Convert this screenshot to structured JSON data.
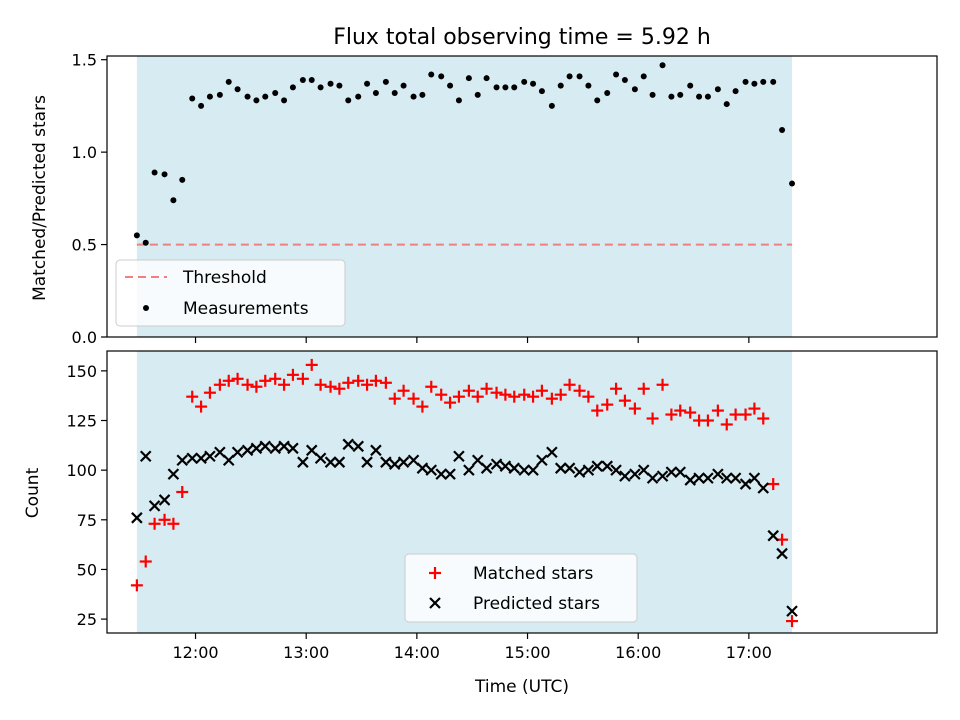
{
  "chart_data": [
    {
      "type": "scatter",
      "title": "Flux total observing time = 5.92 h",
      "xlabel": "",
      "ylabel": "Matched/Predicted stars",
      "xlim": [
        11.2,
        18.7
      ],
      "ylim": [
        0,
        1.52
      ],
      "yticks": [
        0,
        0.5,
        1.0,
        1.5
      ],
      "yticklabels": [
        "0.0",
        "0.5",
        "1.0",
        "1.5"
      ],
      "shaded_span": [
        11.47,
        17.39
      ],
      "shade_color": "#add8e6",
      "threshold": {
        "name": "Threshold",
        "value": 0.5,
        "color": "#f08080",
        "style": "dashed"
      },
      "legend": {
        "position": "lower-left",
        "entries": [
          "Threshold",
          "Measurements"
        ]
      },
      "series": [
        {
          "name": "Measurements",
          "marker": "dot",
          "color": "#000000",
          "x": [
            11.47,
            11.55,
            11.63,
            11.72,
            11.8,
            11.88,
            11.97,
            12.05,
            12.13,
            12.22,
            12.3,
            12.38,
            12.47,
            12.55,
            12.63,
            12.72,
            12.8,
            12.88,
            12.97,
            13.05,
            13.13,
            13.22,
            13.3,
            13.38,
            13.47,
            13.55,
            13.63,
            13.72,
            13.8,
            13.88,
            13.97,
            14.05,
            14.13,
            14.22,
            14.3,
            14.38,
            14.47,
            14.55,
            14.63,
            14.72,
            14.8,
            14.88,
            14.97,
            15.05,
            15.13,
            15.22,
            15.3,
            15.38,
            15.47,
            15.55,
            15.63,
            15.72,
            15.8,
            15.88,
            15.97,
            16.05,
            16.13,
            16.22,
            16.3,
            16.38,
            16.47,
            16.55,
            16.63,
            16.72,
            16.8,
            16.88,
            16.97,
            17.05,
            17.13,
            17.22,
            17.3,
            17.39
          ],
          "y": [
            0.55,
            0.51,
            0.89,
            0.88,
            0.74,
            0.85,
            1.29,
            1.25,
            1.3,
            1.31,
            1.38,
            1.34,
            1.3,
            1.28,
            1.3,
            1.32,
            1.28,
            1.35,
            1.39,
            1.39,
            1.35,
            1.37,
            1.36,
            1.28,
            1.3,
            1.37,
            1.32,
            1.38,
            1.32,
            1.36,
            1.3,
            1.31,
            1.42,
            1.41,
            1.36,
            1.28,
            1.4,
            1.31,
            1.4,
            1.35,
            1.35,
            1.35,
            1.38,
            1.37,
            1.33,
            1.25,
            1.36,
            1.41,
            1.41,
            1.36,
            1.28,
            1.32,
            1.42,
            1.39,
            1.34,
            1.41,
            1.31,
            1.47,
            1.3,
            1.31,
            1.36,
            1.3,
            1.3,
            1.34,
            1.26,
            1.33,
            1.38,
            1.37,
            1.38,
            1.38,
            1.12,
            0.83
          ]
        }
      ]
    },
    {
      "type": "scatter",
      "title": "",
      "xlabel": "Time (UTC)",
      "ylabel": "Count",
      "xlim": [
        11.2,
        18.7
      ],
      "ylim": [
        18,
        160
      ],
      "yticks": [
        25,
        50,
        75,
        100,
        125,
        150
      ],
      "yticklabels": [
        "25",
        "50",
        "75",
        "100",
        "125",
        "150"
      ],
      "xticks": [
        12,
        13,
        14,
        15,
        16,
        17
      ],
      "xticklabels": [
        "12:00",
        "13:00",
        "14:00",
        "15:00",
        "16:00",
        "17:00"
      ],
      "shaded_span": [
        11.47,
        17.39
      ],
      "shade_color": "#add8e6",
      "legend": {
        "position": "lower-center",
        "entries": [
          "Matched stars",
          "Predicted stars"
        ]
      },
      "series": [
        {
          "name": "Matched stars",
          "marker": "plus",
          "color": "#ff0000",
          "x": [
            11.47,
            11.55,
            11.63,
            11.72,
            11.8,
            11.88,
            11.97,
            12.05,
            12.13,
            12.22,
            12.3,
            12.38,
            12.47,
            12.55,
            12.63,
            12.72,
            12.8,
            12.88,
            12.97,
            13.05,
            13.13,
            13.22,
            13.3,
            13.38,
            13.47,
            13.55,
            13.63,
            13.72,
            13.8,
            13.88,
            13.97,
            14.05,
            14.13,
            14.22,
            14.3,
            14.38,
            14.47,
            14.55,
            14.63,
            14.72,
            14.8,
            14.88,
            14.97,
            15.05,
            15.13,
            15.22,
            15.3,
            15.38,
            15.47,
            15.55,
            15.63,
            15.72,
            15.8,
            15.88,
            15.97,
            16.05,
            16.13,
            16.22,
            16.3,
            16.38,
            16.47,
            16.55,
            16.63,
            16.72,
            16.8,
            16.88,
            16.97,
            17.05,
            17.13,
            17.22,
            17.3,
            17.39
          ],
          "y": [
            42,
            54,
            73,
            75,
            73,
            89,
            137,
            132,
            139,
            143,
            145,
            146,
            143,
            142,
            145,
            146,
            143,
            148,
            146,
            153,
            143,
            142,
            141,
            144,
            145,
            143,
            145,
            144,
            136,
            140,
            136,
            132,
            142,
            138,
            134,
            137,
            140,
            137,
            141,
            139,
            138,
            137,
            138,
            137,
            140,
            136,
            138,
            143,
            140,
            137,
            130,
            133,
            141,
            135,
            131,
            141,
            126,
            143,
            128,
            130,
            129,
            125,
            125,
            130,
            123,
            128,
            128,
            131,
            126,
            93,
            65,
            24
          ]
        },
        {
          "name": "Predicted stars",
          "marker": "x",
          "color": "#000000",
          "x": [
            11.47,
            11.55,
            11.63,
            11.72,
            11.8,
            11.88,
            11.97,
            12.05,
            12.13,
            12.22,
            12.3,
            12.38,
            12.47,
            12.55,
            12.63,
            12.72,
            12.8,
            12.88,
            12.97,
            13.05,
            13.13,
            13.22,
            13.3,
            13.38,
            13.47,
            13.55,
            13.63,
            13.72,
            13.8,
            13.88,
            13.97,
            14.05,
            14.13,
            14.22,
            14.3,
            14.38,
            14.47,
            14.55,
            14.63,
            14.72,
            14.8,
            14.88,
            14.97,
            15.05,
            15.13,
            15.22,
            15.3,
            15.38,
            15.47,
            15.55,
            15.63,
            15.72,
            15.8,
            15.88,
            15.97,
            16.05,
            16.13,
            16.22,
            16.3,
            16.38,
            16.47,
            16.55,
            16.63,
            16.72,
            16.8,
            16.88,
            16.97,
            17.05,
            17.13,
            17.22,
            17.3,
            17.39
          ],
          "y": [
            76,
            107,
            82,
            85,
            98,
            105,
            106,
            106,
            107,
            109,
            105,
            109,
            110,
            111,
            112,
            111,
            112,
            111,
            104,
            110,
            106,
            104,
            104,
            113,
            112,
            104,
            110,
            104,
            103,
            104,
            105,
            101,
            100,
            98,
            98,
            107,
            100,
            105,
            101,
            103,
            102,
            101,
            100,
            100,
            105,
            109,
            101,
            101,
            99,
            100,
            102,
            102,
            100,
            97,
            98,
            100,
            96,
            97,
            99,
            99,
            95,
            96,
            96,
            98,
            96,
            96,
            93,
            96,
            91,
            67,
            58,
            29
          ]
        }
      ]
    }
  ]
}
